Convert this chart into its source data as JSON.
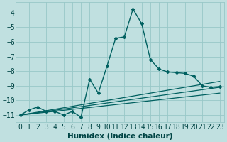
{
  "background_color": "#c0e0e0",
  "grid_color": "#98c8c8",
  "line_color": "#006060",
  "xlabel": "Humidex (Indice chaleur)",
  "xlabel_fontsize": 7.5,
  "tick_fontsize": 7,
  "xlim": [
    -0.5,
    23.5
  ],
  "ylim": [
    -11.5,
    -3.3
  ],
  "yticks": [
    -11,
    -10,
    -9,
    -8,
    -7,
    -6,
    -5,
    -4
  ],
  "xticks": [
    0,
    1,
    2,
    3,
    4,
    5,
    6,
    7,
    8,
    9,
    10,
    11,
    12,
    13,
    14,
    15,
    16,
    17,
    18,
    19,
    20,
    21,
    22,
    23
  ],
  "series_main": {
    "x": [
      0,
      1,
      2,
      3,
      4,
      5,
      6,
      7,
      8,
      9,
      10,
      11,
      12,
      13,
      14,
      15,
      16,
      17,
      18,
      19,
      20,
      21,
      22,
      23
    ],
    "y": [
      -11.0,
      -10.65,
      -10.45,
      -10.75,
      -10.75,
      -11.0,
      -10.75,
      -11.15,
      -8.55,
      -9.5,
      -7.65,
      -5.75,
      -5.65,
      -3.75,
      -4.75,
      -7.2,
      -7.85,
      -8.05,
      -8.1,
      -8.15,
      -8.35,
      -9.0,
      -9.1,
      -9.05
    ],
    "marker": "D",
    "markersize": 2.0,
    "linewidth": 1.0
  },
  "series_lines": [
    {
      "x0": 0,
      "y0": -11.0,
      "x1": 23,
      "y1": -8.7
    },
    {
      "x0": 0,
      "y0": -11.0,
      "x1": 23,
      "y1": -9.1
    },
    {
      "x0": 0,
      "y0": -11.0,
      "x1": 23,
      "y1": -9.5
    }
  ],
  "linewidth_thin": 0.9
}
